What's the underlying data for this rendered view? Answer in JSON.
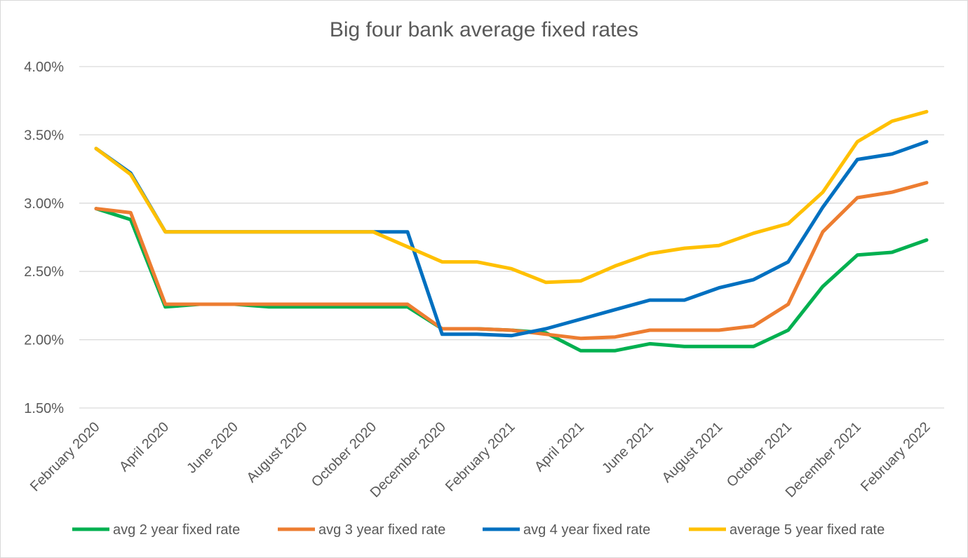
{
  "chart_data": {
    "type": "line",
    "title": "Big four bank average fixed rates",
    "xlabel": "",
    "ylabel": "",
    "ylim": [
      1.5,
      4.0
    ],
    "yticks": [
      "1.50%",
      "2.00%",
      "2.50%",
      "3.00%",
      "3.50%",
      "4.00%"
    ],
    "ytick_values": [
      1.5,
      2.0,
      2.5,
      3.0,
      3.5,
      4.0
    ],
    "grid": true,
    "legend_position": "bottom",
    "x": [
      "February 2020",
      "March 2020",
      "April 2020",
      "May 2020",
      "June 2020",
      "July 2020",
      "August 2020",
      "September 2020",
      "October 2020",
      "November 2020",
      "December 2020",
      "January 2021",
      "February 2021",
      "March 2021",
      "April 2021",
      "May 2021",
      "June 2021",
      "July 2021",
      "August 2021",
      "September 2021",
      "October 2021",
      "November 2021",
      "December 2021",
      "January 2022",
      "February 2022"
    ],
    "xtick_labels": [
      "February 2020",
      "",
      "April 2020",
      "",
      "June 2020",
      "",
      "August 2020",
      "",
      "October 2020",
      "",
      "December 2020",
      "",
      "February 2021",
      "",
      "April 2021",
      "",
      "June 2021",
      "",
      "August 2021",
      "",
      "October 2021",
      "",
      "December 2021",
      "",
      "February 2022"
    ],
    "series": [
      {
        "name": "avg 2 year fixed rate",
        "color": "#00b050",
        "values": [
          2.96,
          2.88,
          2.24,
          2.26,
          2.26,
          2.24,
          2.24,
          2.24,
          2.24,
          2.24,
          2.08,
          2.08,
          2.07,
          2.05,
          1.92,
          1.92,
          1.97,
          1.95,
          1.95,
          1.95,
          2.07,
          2.39,
          2.62,
          2.64,
          2.73
        ]
      },
      {
        "name": "avg 3 year fixed rate",
        "color": "#ed7d31",
        "values": [
          2.96,
          2.93,
          2.26,
          2.26,
          2.26,
          2.26,
          2.26,
          2.26,
          2.26,
          2.26,
          2.08,
          2.08,
          2.07,
          2.04,
          2.01,
          2.02,
          2.07,
          2.07,
          2.07,
          2.1,
          2.26,
          2.79,
          3.04,
          3.08,
          3.15
        ]
      },
      {
        "name": "avg 4 year fixed rate",
        "color": "#0070c0",
        "values": [
          3.4,
          3.22,
          2.79,
          2.79,
          2.79,
          2.79,
          2.79,
          2.79,
          2.79,
          2.79,
          2.04,
          2.04,
          2.03,
          2.08,
          2.15,
          2.22,
          2.29,
          2.29,
          2.38,
          2.44,
          2.57,
          2.97,
          3.32,
          3.36,
          3.45
        ]
      },
      {
        "name": "average 5 year fixed rate",
        "color": "#ffc000",
        "values": [
          3.4,
          3.21,
          2.79,
          2.79,
          2.79,
          2.79,
          2.79,
          2.79,
          2.79,
          2.68,
          2.57,
          2.57,
          2.52,
          2.42,
          2.43,
          2.54,
          2.63,
          2.67,
          2.69,
          2.78,
          2.85,
          3.08,
          3.45,
          3.6,
          3.67
        ]
      }
    ]
  }
}
